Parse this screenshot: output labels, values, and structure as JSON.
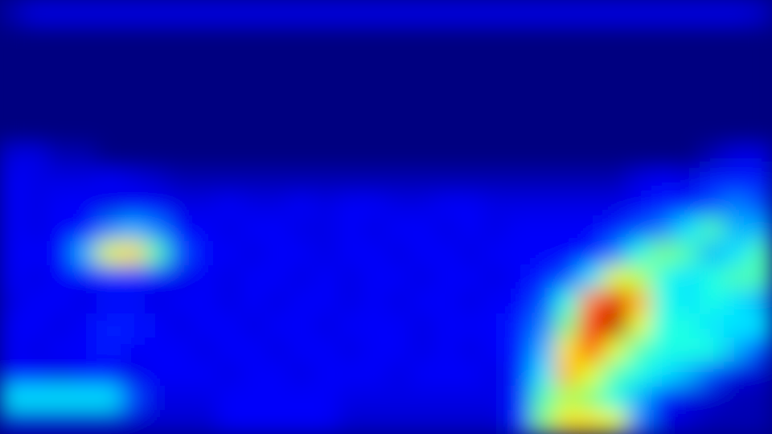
{
  "chart_data": {
    "type": "heatmap",
    "tick_labels": false,
    "zlim": [
      0,
      1
    ],
    "cells": [
      [
        0.05,
        0.1,
        0.1,
        0.1,
        0.1,
        0.1,
        0.1,
        0.1,
        0.1,
        0.1,
        0.1,
        0.1,
        0.1,
        0.1,
        0.1,
        0.1,
        0.1,
        0.1,
        0.1,
        0.1,
        0.1,
        0.1,
        0.1,
        0.1,
        0.1,
        0.1,
        0.1,
        0.1,
        0.1,
        0.1,
        0.1,
        0.08
      ],
      [
        0,
        0,
        0,
        0,
        0,
        0,
        0,
        0,
        0,
        0,
        0,
        0,
        0,
        0,
        0,
        0,
        0,
        0,
        0,
        0,
        0,
        0,
        0,
        0,
        0,
        0,
        0,
        0,
        0,
        0,
        0,
        0
      ],
      [
        0,
        0,
        0,
        0,
        0,
        0,
        0,
        0,
        0,
        0,
        0,
        0,
        0,
        0,
        0,
        0,
        0,
        0,
        0,
        0,
        0,
        0,
        0,
        0,
        0,
        0,
        0,
        0,
        0,
        0,
        0,
        0
      ],
      [
        0,
        0,
        0,
        0,
        0,
        0,
        0,
        0,
        0,
        0,
        0,
        0,
        0,
        0,
        0,
        0,
        0,
        0,
        0,
        0,
        0,
        0,
        0,
        0,
        0,
        0,
        0,
        0,
        0,
        0,
        0,
        0
      ],
      [
        0,
        0,
        0,
        0,
        0,
        0,
        0,
        0,
        0,
        0,
        0,
        0,
        0,
        0,
        0,
        0,
        0,
        0,
        0,
        0,
        0,
        0,
        0,
        0,
        0,
        0,
        0,
        0,
        0,
        0,
        0,
        0
      ],
      [
        0,
        0,
        0,
        0,
        0,
        0,
        0,
        0,
        0,
        0,
        0,
        0,
        0,
        0,
        0,
        0,
        0,
        0,
        0,
        0,
        0,
        0,
        0,
        0,
        0,
        0,
        0,
        0,
        0,
        0,
        0,
        0
      ],
      [
        0.1,
        0.1,
        0.05,
        0.05,
        0,
        0,
        0,
        0,
        0,
        0,
        0,
        0,
        0,
        0,
        0,
        0,
        0,
        0,
        0,
        0,
        0,
        0,
        0,
        0,
        0,
        0,
        0,
        0,
        0,
        0.05,
        0.1,
        0.1
      ],
      [
        0.12,
        0.1,
        0.1,
        0.1,
        0.12,
        0.1,
        0.08,
        0.05,
        0.05,
        0.05,
        0.05,
        0.05,
        0.05,
        0.05,
        0.05,
        0.05,
        0.05,
        0.05,
        0.05,
        0.05,
        0.05,
        0.05,
        0.05,
        0.05,
        0.05,
        0.05,
        0.1,
        0.12,
        0.1,
        0.15,
        0.15,
        0.15
      ],
      [
        0.12,
        0.1,
        0.12,
        0.12,
        0.1,
        0.12,
        0.12,
        0.1,
        0.1,
        0.12,
        0.1,
        0.1,
        0.12,
        0.1,
        0.12,
        0.12,
        0.1,
        0.1,
        0.12,
        0.12,
        0.1,
        0.1,
        0.1,
        0.1,
        0.1,
        0.1,
        0.12,
        0.15,
        0.15,
        0.2,
        0.25,
        0.2
      ],
      [
        0.12,
        0.1,
        0.12,
        0.12,
        0.25,
        0.3,
        0.25,
        0.12,
        0.12,
        0.1,
        0.12,
        0.12,
        0.1,
        0.1,
        0.12,
        0.1,
        0.12,
        0.12,
        0.1,
        0.12,
        0.1,
        0.12,
        0.12,
        0.12,
        0.12,
        0.15,
        0.2,
        0.25,
        0.35,
        0.45,
        0.3,
        0.3
      ],
      [
        0.12,
        0.12,
        0.12,
        0.3,
        0.6,
        0.65,
        0.45,
        0.2,
        0.12,
        0.12,
        0.1,
        0.12,
        0.12,
        0.1,
        0.12,
        0.12,
        0.1,
        0.12,
        0.12,
        0.1,
        0.12,
        0.12,
        0.12,
        0.12,
        0.15,
        0.25,
        0.4,
        0.5,
        0.45,
        0.3,
        0.35,
        0.45
      ],
      [
        0.12,
        0.1,
        0.12,
        0.12,
        0.15,
        0.15,
        0.12,
        0.1,
        0.12,
        0.1,
        0.12,
        0.12,
        0.1,
        0.12,
        0.1,
        0.12,
        0.12,
        0.1,
        0.12,
        0.12,
        0.1,
        0.12,
        0.15,
        0.2,
        0.35,
        0.6,
        0.55,
        0.4,
        0.35,
        0.4,
        0.45,
        0.45
      ],
      [
        0.1,
        0.12,
        0.12,
        0.1,
        0.12,
        0.12,
        0.1,
        0.12,
        0.12,
        0.1,
        0.12,
        0.1,
        0.12,
        0.12,
        0.1,
        0.12,
        0.1,
        0.12,
        0.12,
        0.1,
        0.12,
        0.12,
        0.2,
        0.4,
        0.75,
        0.9,
        0.7,
        0.4,
        0.35,
        0.4,
        0.35,
        0.3
      ],
      [
        0.12,
        0.12,
        0.1,
        0.12,
        0.15,
        0.15,
        0.12,
        0.1,
        0.12,
        0.12,
        0.1,
        0.12,
        0.12,
        0.1,
        0.12,
        0.12,
        0.12,
        0.1,
        0.12,
        0.12,
        0.12,
        0.15,
        0.25,
        0.5,
        0.85,
        0.95,
        0.6,
        0.4,
        0.4,
        0.35,
        0.35,
        0.35
      ],
      [
        0.12,
        0.1,
        0.12,
        0.12,
        0.15,
        0.12,
        0.12,
        0.12,
        0.1,
        0.12,
        0.12,
        0.1,
        0.12,
        0.12,
        0.1,
        0.12,
        0.12,
        0.1,
        0.12,
        0.1,
        0.12,
        0.15,
        0.3,
        0.65,
        0.8,
        0.6,
        0.45,
        0.4,
        0.4,
        0.4,
        0.3,
        0.2
      ],
      [
        0.12,
        0.12,
        0.1,
        0.12,
        0.12,
        0.1,
        0.12,
        0.12,
        0.12,
        0.1,
        0.12,
        0.12,
        0.1,
        0.12,
        0.12,
        0.12,
        0.1,
        0.12,
        0.12,
        0.12,
        0.1,
        0.15,
        0.35,
        0.7,
        0.6,
        0.45,
        0.4,
        0.35,
        0.3,
        0.2,
        0.1,
        0.08
      ],
      [
        0.35,
        0.35,
        0.35,
        0.35,
        0.35,
        0.2,
        0.1,
        0.1,
        0.1,
        0.12,
        0.12,
        0.12,
        0.12,
        0.12,
        0.1,
        0.1,
        0.1,
        0.1,
        0.1,
        0.1,
        0.1,
        0.15,
        0.45,
        0.55,
        0.5,
        0.4,
        0.3,
        0.15,
        0.1,
        0.08,
        0.05,
        0.05
      ],
      [
        0.08,
        0.08,
        0.08,
        0.08,
        0.08,
        0.08,
        0.08,
        0.08,
        0.08,
        0.12,
        0.12,
        0.12,
        0.12,
        0.12,
        0.08,
        0.08,
        0.08,
        0.08,
        0.08,
        0.08,
        0.08,
        0.15,
        0.5,
        0.65,
        0.65,
        0.6,
        0.25,
        0.1,
        0.08,
        0.05,
        0.05,
        0.05
      ]
    ]
  }
}
